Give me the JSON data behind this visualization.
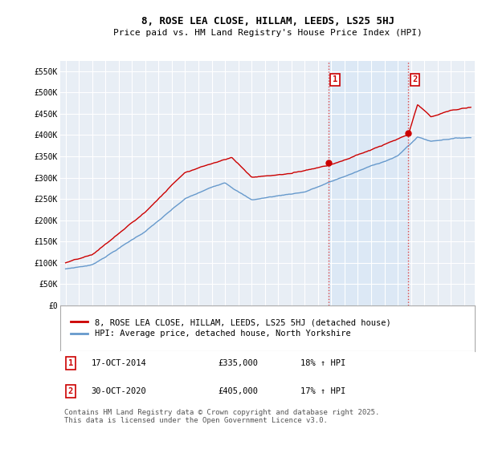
{
  "title": "8, ROSE LEA CLOSE, HILLAM, LEEDS, LS25 5HJ",
  "subtitle": "Price paid vs. HM Land Registry's House Price Index (HPI)",
  "ylim": [
    0,
    575000
  ],
  "yticks": [
    0,
    50000,
    100000,
    150000,
    200000,
    250000,
    300000,
    350000,
    400000,
    450000,
    500000,
    550000
  ],
  "ytick_labels": [
    "£0",
    "£50K",
    "£100K",
    "£150K",
    "£200K",
    "£250K",
    "£300K",
    "£350K",
    "£400K",
    "£450K",
    "£500K",
    "£550K"
  ],
  "background_color": "#ffffff",
  "plot_bg_color": "#e8eef5",
  "grid_color": "#ffffff",
  "red_line_color": "#cc0000",
  "blue_line_color": "#6699cc",
  "blue_span_color": "#dce8f5",
  "vline_color": "#dd4444",
  "legend_label_red": "8, ROSE LEA CLOSE, HILLAM, LEEDS, LS25 5HJ (detached house)",
  "legend_label_blue": "HPI: Average price, detached house, North Yorkshire",
  "marker1_label": "1",
  "marker1_date": "17-OCT-2014",
  "marker1_price": "£335,000",
  "marker1_hpi": "18% ↑ HPI",
  "marker1_year": 2014.8,
  "marker1_price_val": 335000,
  "marker2_label": "2",
  "marker2_date": "30-OCT-2020",
  "marker2_price": "£405,000",
  "marker2_hpi": "17% ↑ HPI",
  "marker2_year": 2020.8,
  "marker2_price_val": 405000,
  "footnote": "Contains HM Land Registry data © Crown copyright and database right 2025.\nThis data is licensed under the Open Government Licence v3.0.",
  "title_fontsize": 9,
  "subtitle_fontsize": 8,
  "tick_fontsize": 7,
  "legend_fontsize": 7.5,
  "annotation_fontsize": 7.5,
  "footnote_fontsize": 6.5
}
